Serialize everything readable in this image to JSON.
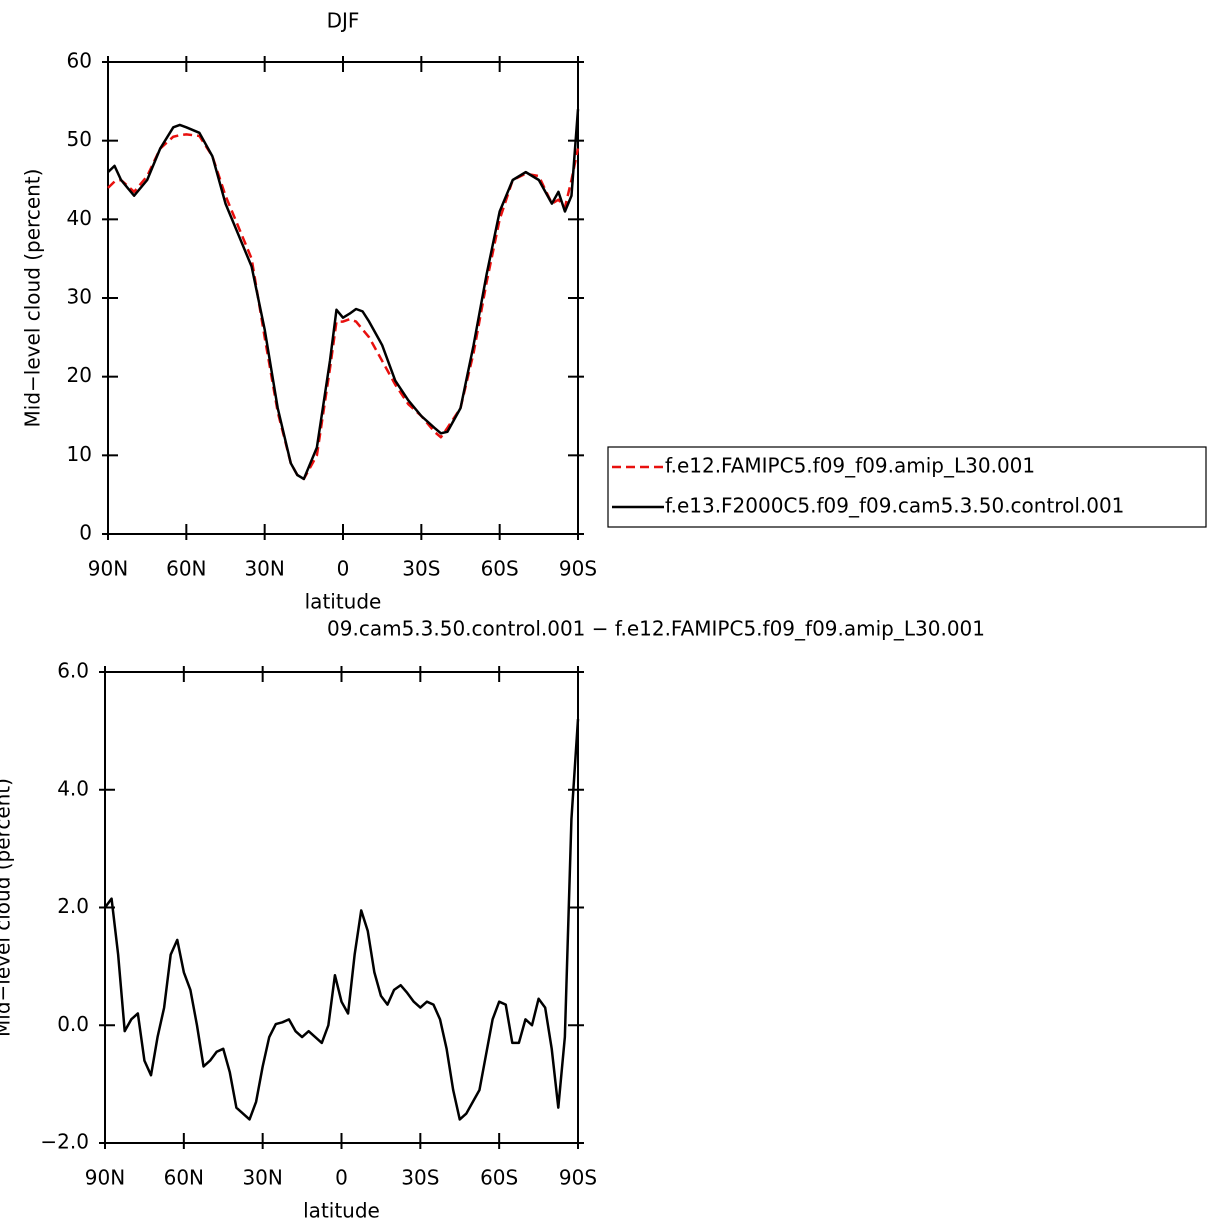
{
  "chart_data": [
    {
      "type": "line",
      "title": "DJF",
      "xlabel": "latitude",
      "ylabel": "Mid−level cloud (percent)",
      "x": [
        90,
        87.5,
        85,
        80,
        75,
        70,
        65,
        62.5,
        60,
        55,
        50,
        45,
        40,
        35,
        30,
        25,
        20,
        17.5,
        15,
        10,
        5,
        2.5,
        0,
        -2.5,
        -5,
        -7.5,
        -10,
        -15,
        -20,
        -25,
        -30,
        -35,
        -37.5,
        -40,
        -45,
        -50,
        -55,
        -60,
        -65,
        -70,
        -75,
        -80,
        -82.5,
        -85,
        -87.5,
        -90
      ],
      "series": [
        {
          "name": "f.e12.FAMIPC5.f09_f09.amip_L30.001",
          "color": "#e8100e",
          "dash": "dashed",
          "values": [
            44,
            44.8,
            45,
            43.5,
            45.5,
            49,
            50.5,
            50.7,
            50.8,
            50.6,
            48,
            43,
            39,
            35,
            25,
            15.5,
            9,
            7.5,
            7,
            10,
            21,
            27,
            27,
            27.3,
            27,
            26,
            25,
            22,
            19,
            16.5,
            15,
            13,
            12.3,
            13.5,
            16,
            23,
            32,
            40,
            45,
            45.8,
            45.5,
            42,
            42.5,
            41.5,
            45,
            49
          ]
        },
        {
          "name": "f.e13.F2000C5.f09_f09.cam5.3.50.control.001",
          "color": "#000000",
          "dash": "solid",
          "values": [
            46,
            46.8,
            45,
            43,
            45,
            49,
            51.7,
            52,
            51.7,
            51,
            48,
            42,
            38,
            34,
            26,
            16,
            9,
            7.5,
            7,
            11,
            22,
            28.5,
            27.5,
            28,
            28.6,
            28.3,
            27,
            24,
            19.5,
            17,
            15,
            13.5,
            12.8,
            13,
            16,
            24,
            33,
            41,
            45,
            46,
            45,
            42,
            43.5,
            41,
            43,
            54
          ]
        }
      ],
      "xlim": [
        90,
        -90
      ],
      "xticks": [
        {
          "value": 90,
          "label": "90N"
        },
        {
          "value": 60,
          "label": "60N"
        },
        {
          "value": 30,
          "label": "30N"
        },
        0,
        {
          "value": -30,
          "label": "30S"
        },
        {
          "value": -60,
          "label": "60S"
        },
        {
          "value": -90,
          "label": "90S"
        }
      ],
      "ylim": [
        0,
        60
      ],
      "yticks": [
        0,
        10,
        20,
        30,
        40,
        50,
        60
      ],
      "legend": "right"
    },
    {
      "type": "line",
      "title": "09.cam5.3.50.control.001 − f.e12.FAMIPC5.f09_f09.amip_L30.001",
      "xlabel": "latitude",
      "ylabel": "Mid−level cloud (percent)",
      "x": [
        90,
        87.5,
        85,
        82.5,
        80,
        77.5,
        75,
        72.5,
        70,
        67.5,
        65,
        62.5,
        60,
        57.5,
        55,
        52.5,
        50,
        47.5,
        45,
        42.5,
        40,
        37.5,
        35,
        32.5,
        30,
        27.5,
        25,
        22.5,
        20,
        17.5,
        15,
        12.5,
        10,
        7.5,
        5,
        2.5,
        0,
        -2.5,
        -5,
        -7.5,
        -10,
        -12.5,
        -15,
        -17.5,
        -20,
        -22.5,
        -25,
        -27.5,
        -30,
        -32.5,
        -35,
        -37.5,
        -40,
        -42.5,
        -45,
        -47.5,
        -50,
        -52.5,
        -55,
        -57.5,
        -60,
        -62.5,
        -65,
        -67.5,
        -70,
        -72.5,
        -75,
        -77.5,
        -80,
        -82.5,
        -85,
        -87.5,
        -90
      ],
      "values": [
        2.0,
        2.15,
        1.2,
        -0.1,
        0.1,
        0.2,
        -0.6,
        -0.85,
        -0.2,
        0.3,
        1.2,
        1.45,
        0.9,
        0.6,
        0,
        -0.7,
        -0.6,
        -0.45,
        -0.4,
        -0.8,
        -1.4,
        -1.5,
        -1.6,
        -1.3,
        -0.7,
        -0.2,
        0.02,
        0.05,
        0.1,
        -0.1,
        -0.2,
        -0.1,
        -0.2,
        -0.3,
        0,
        0.85,
        0.4,
        0.2,
        1.2,
        1.95,
        1.6,
        0.9,
        0.5,
        0.35,
        0.6,
        0.68,
        0.55,
        0.4,
        0.3,
        0.4,
        0.35,
        0.1,
        -0.4,
        -1.1,
        -1.6,
        -1.5,
        -1.3,
        -1.1,
        -0.5,
        0.1,
        0.4,
        0.35,
        -0.3,
        -0.3,
        0.1,
        0,
        0.45,
        0.3,
        -0.4,
        -1.4,
        -0.2,
        3.5,
        5.2
      ],
      "color": "#000000",
      "xlim": [
        90,
        -90
      ],
      "xticks": [
        {
          "value": 90,
          "label": "90N"
        },
        {
          "value": 60,
          "label": "60N"
        },
        {
          "value": 30,
          "label": "30N"
        },
        0,
        {
          "value": -30,
          "label": "30S"
        },
        {
          "value": -60,
          "label": "60S"
        },
        {
          "value": -90,
          "label": "90S"
        }
      ],
      "ylim": [
        -2,
        6
      ],
      "yticks": [
        {
          "value": -2,
          "label": "−2.0"
        },
        {
          "value": 0,
          "label": "0.0"
        },
        {
          "value": 2,
          "label": "2.0"
        },
        {
          "value": 4,
          "label": "4.0"
        },
        {
          "value": 6,
          "label": "6.0"
        }
      ]
    }
  ]
}
